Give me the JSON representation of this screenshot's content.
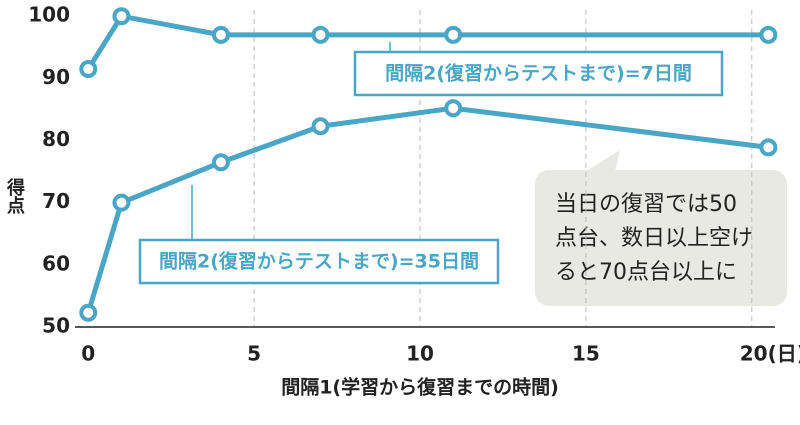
{
  "chart_data": {
    "type": "line",
    "x": [
      0,
      1,
      4,
      7,
      11,
      20.5
    ],
    "series": [
      {
        "name": "間隔2(復習からテストまで)=7日間",
        "color": "#4aa6c6",
        "values": [
          91.5,
          100,
          97,
          97,
          97,
          97
        ]
      },
      {
        "name": "間隔2(復習からテストまで)=35日間",
        "color": "#4aa6c6",
        "values": [
          52.3,
          70,
          76.5,
          82.3,
          85.2,
          78.9
        ]
      }
    ],
    "xlim": [
      -0.4,
      20.7
    ],
    "xticks": [
      0,
      5,
      10,
      15,
      {
        "value": 20,
        "label": "20(日)"
      }
    ],
    "ylim": [
      50,
      101
    ],
    "yticks": [
      50,
      60,
      70,
      80,
      90,
      100
    ],
    "xlabel": "間隔1(学習から復習までの時間)",
    "ylabel": "得点",
    "annotation": [
      "当日の復習では50",
      "点台、数日以上空け",
      "ると70点台以上に"
    ],
    "grid": true
  }
}
